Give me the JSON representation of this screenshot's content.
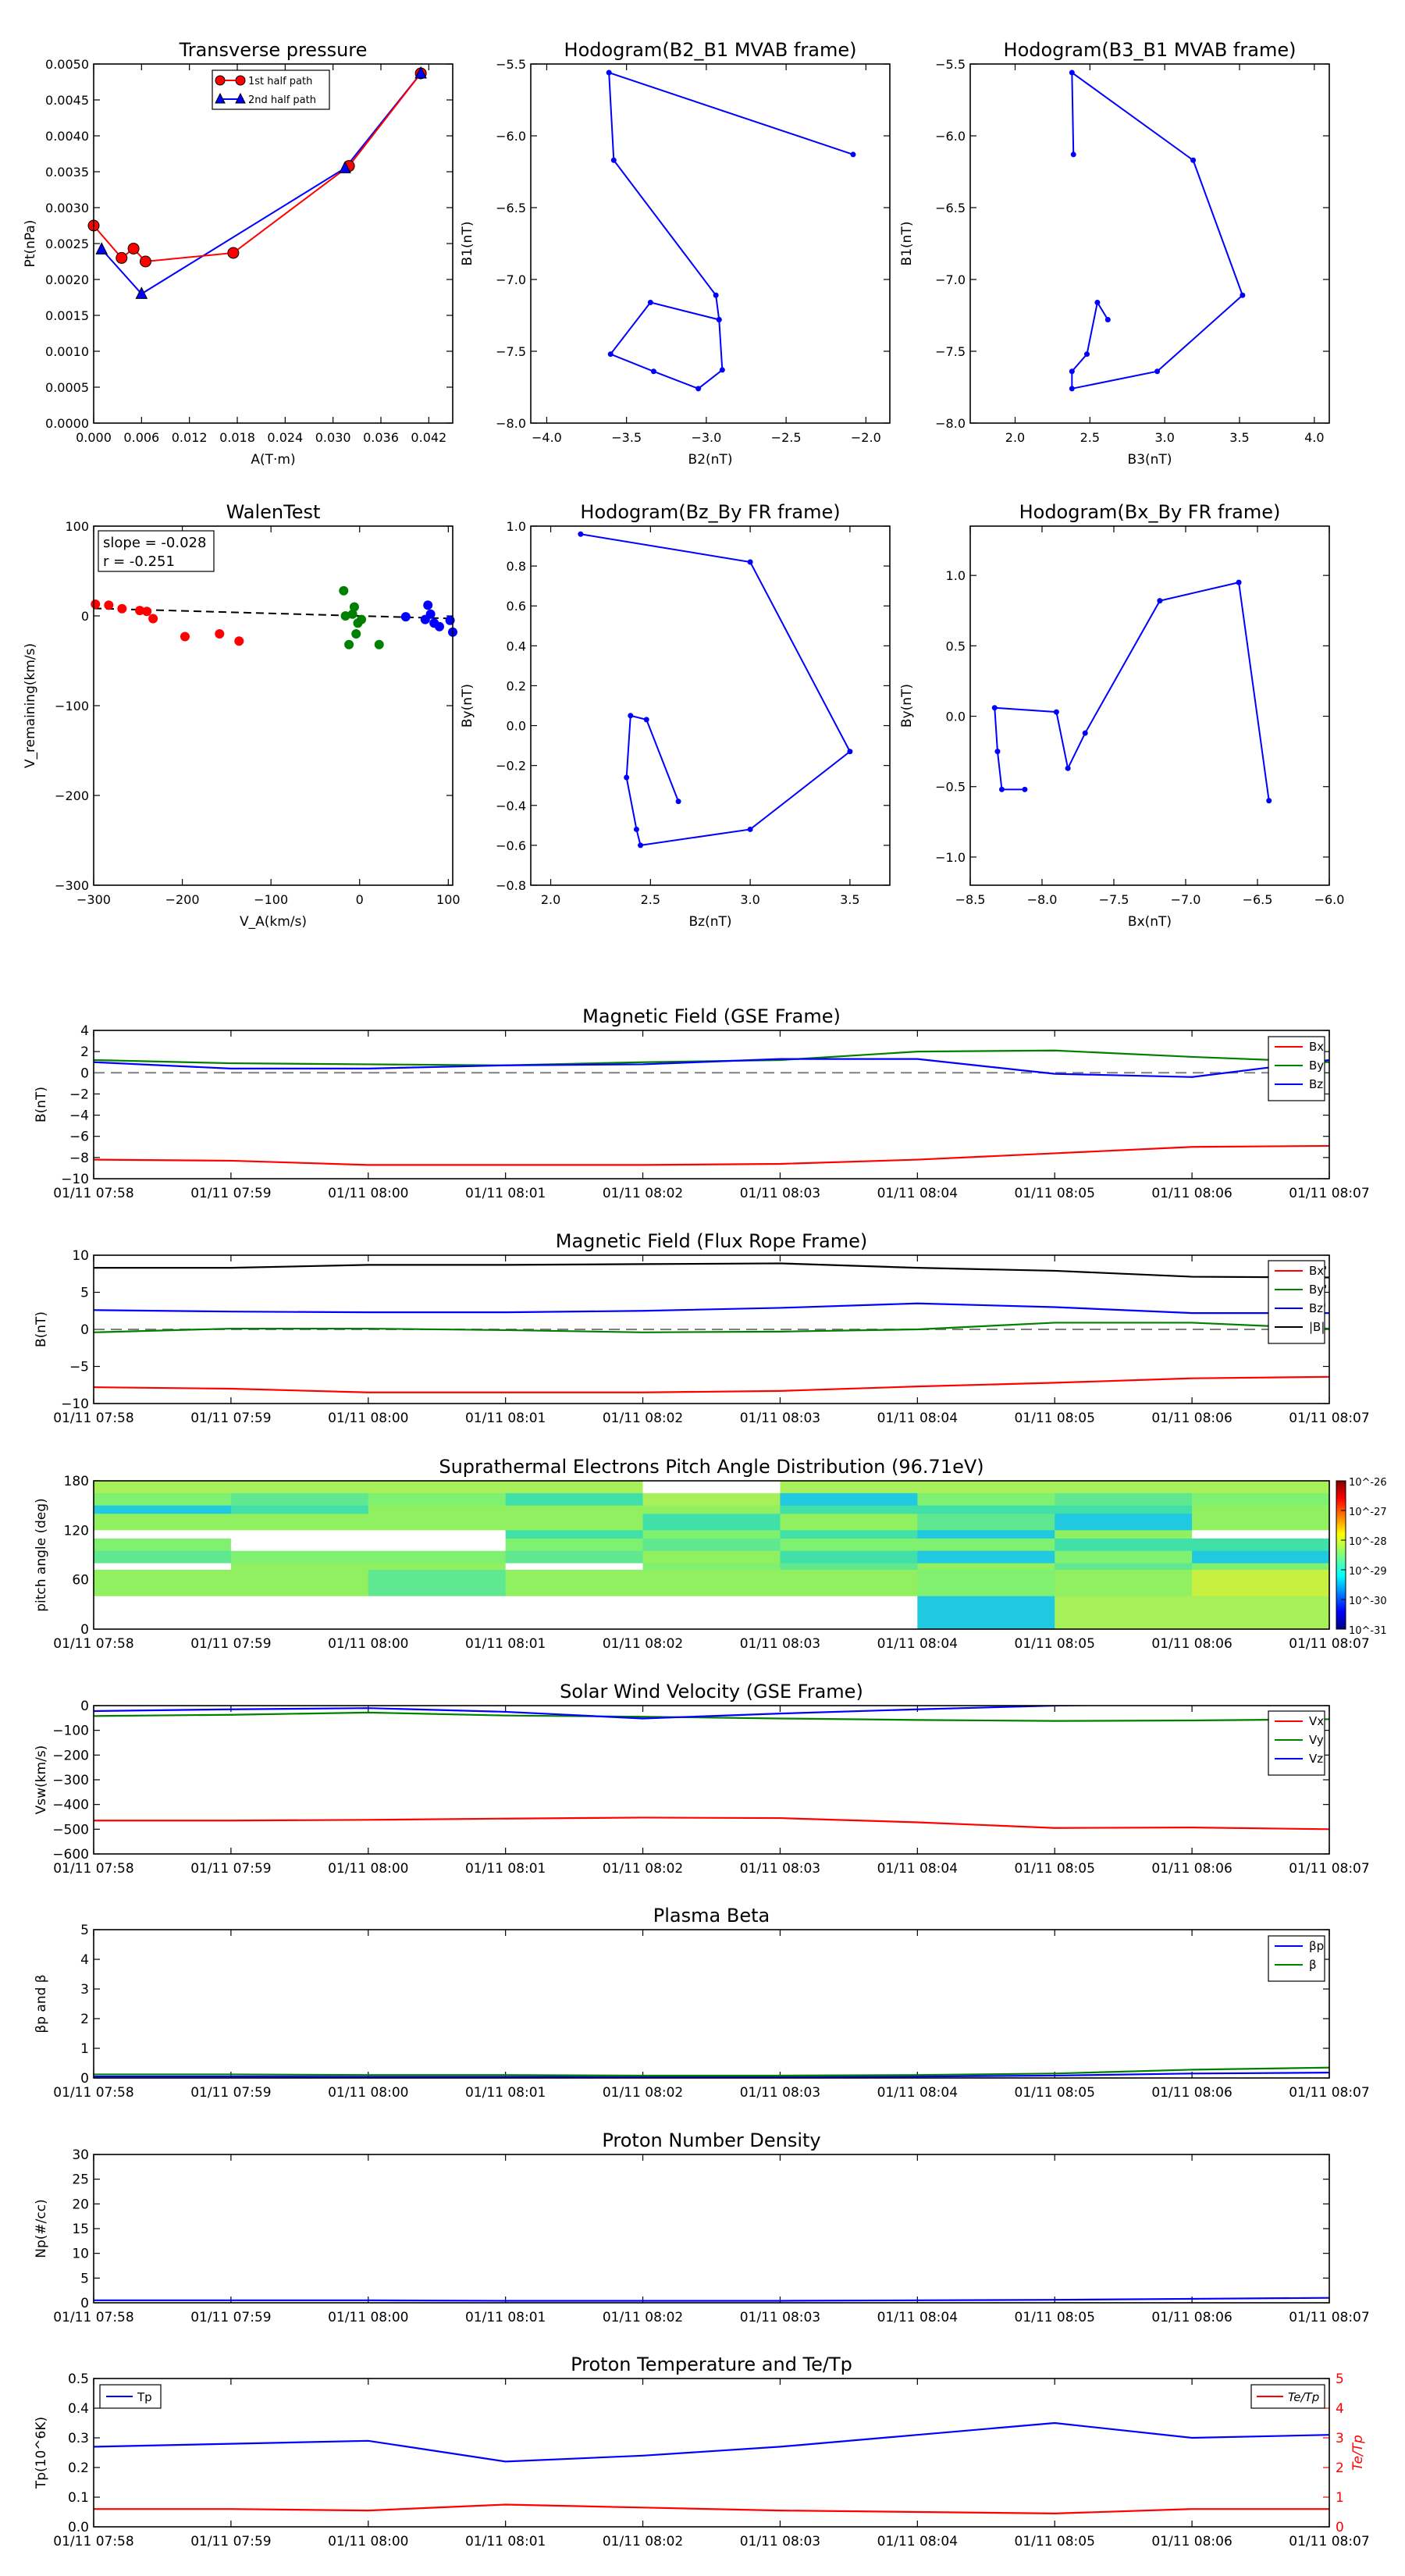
{
  "time_ticks": [
    "01/11 07:58",
    "01/11 07:59",
    "01/11 08:00",
    "01/11 08:01",
    "01/11 08:02",
    "01/11 08:03",
    "01/11 08:04",
    "01/11 08:05",
    "01/11 08:06",
    "01/11 08:07"
  ],
  "colors": {
    "red": "#ff0000",
    "green": "#008000",
    "blue": "#0000ff",
    "black": "#000000",
    "gray": "#808080",
    "dark_red": "#cc0000",
    "dark_green": "#007000",
    "dark_blue": "#1010e0"
  },
  "chart_data": [
    {
      "id": "pt",
      "type": "line",
      "title": "Transverse pressure",
      "xlabel": "A(T·m)",
      "ylabel": "Pt(nPa)",
      "xlim": [
        0,
        0.045
      ],
      "ylim": [
        0,
        0.005
      ],
      "xticks": [
        0.0,
        0.006,
        0.012,
        0.018,
        0.024,
        0.03,
        0.036,
        0.042
      ],
      "xtick_labels": [
        "0.000",
        "0.006",
        "0.012",
        "0.018",
        "0.024",
        "0.030",
        "0.036",
        "0.042"
      ],
      "yticks": [
        0,
        0.0005,
        0.001,
        0.0015,
        0.002,
        0.0025,
        0.003,
        0.0035,
        0.004,
        0.0045,
        0.005
      ],
      "ytick_labels": [
        "0.0000",
        "0.0005",
        "0.0010",
        "0.0015",
        "0.0020",
        "0.0025",
        "0.0030",
        "0.0035",
        "0.0040",
        "0.0045",
        "0.0050"
      ],
      "legend": "top-center",
      "series": [
        {
          "name": "1st half path",
          "marker": "circle",
          "x": [
            0.0,
            0.0035,
            0.005,
            0.0065,
            0.0175,
            0.032,
            0.041
          ],
          "y": [
            0.00275,
            0.0023,
            0.00243,
            0.00225,
            0.00237,
            0.00358,
            0.00487
          ]
        },
        {
          "name": "2nd half path",
          "marker": "triangle",
          "x": [
            0.001,
            0.006,
            0.0315,
            0.041
          ],
          "y": [
            0.00242,
            0.0018,
            0.00355,
            0.00487
          ]
        }
      ]
    },
    {
      "id": "h1",
      "type": "scatter",
      "title": "Hodogram(B2_B1 MVAB frame)",
      "xlabel": "B2(nT)",
      "ylabel": "B1(nT)",
      "xlim": [
        -4.1,
        -1.85
      ],
      "ylim": [
        -8.0,
        -5.5
      ],
      "xticks": [
        -4.0,
        -3.5,
        -3.0,
        -2.5,
        -2.0
      ],
      "xtick_labels": [
        "−4.0",
        "−3.5",
        "−3.0",
        "−2.5",
        "−2.0"
      ],
      "yticks": [
        -8.0,
        -7.5,
        -7.0,
        -6.5,
        -6.0,
        -5.5
      ],
      "ytick_labels": [
        "−8.0",
        "−7.5",
        "−7.0",
        "−6.5",
        "−6.0",
        "−5.5"
      ],
      "x": [
        -2.08,
        -3.61,
        -3.58,
        -2.94,
        -2.92,
        -3.35,
        -3.6,
        -3.33,
        -3.05,
        -2.9,
        -2.92
      ],
      "y": [
        -6.13,
        -5.56,
        -6.17,
        -7.11,
        -7.28,
        -7.16,
        -7.52,
        -7.64,
        -7.76,
        -7.63,
        -7.28
      ]
    },
    {
      "id": "h2",
      "type": "scatter",
      "title": "Hodogram(B3_B1 MVAB frame)",
      "xlabel": "B3(nT)",
      "ylabel": "B1(nT)",
      "xlim": [
        1.7,
        4.1
      ],
      "ylim": [
        -8.0,
        -5.5
      ],
      "xticks": [
        2.0,
        2.5,
        3.0,
        3.5,
        4.0
      ],
      "xtick_labels": [
        "2.0",
        "2.5",
        "3.0",
        "3.5",
        "4.0"
      ],
      "yticks": [
        -8.0,
        -7.5,
        -7.0,
        -6.5,
        -6.0,
        -5.5
      ],
      "ytick_labels": [
        "−8.0",
        "−7.5",
        "−7.0",
        "−6.5",
        "−6.0",
        "−5.5"
      ],
      "x": [
        2.39,
        2.38,
        3.19,
        3.52,
        2.95,
        2.38,
        2.38,
        2.48,
        2.55,
        2.62
      ],
      "y": [
        -6.13,
        -5.56,
        -6.17,
        -7.11,
        -7.64,
        -7.76,
        -7.64,
        -7.52,
        -7.16,
        -7.28
      ]
    },
    {
      "id": "walen",
      "type": "scatter",
      "title": "WalenTest",
      "xlabel": "V_A(km/s)",
      "ylabel": "V_remaining(km/s)",
      "xlim": [
        -300,
        105
      ],
      "ylim": [
        -300,
        100
      ],
      "xticks": [
        -300,
        -200,
        -100,
        0,
        100
      ],
      "xtick_labels": [
        "−300",
        "−200",
        "−100",
        "0",
        "100"
      ],
      "yticks": [
        -300,
        -200,
        -100,
        0,
        100
      ],
      "ytick_labels": [
        "−300",
        "−200",
        "−100",
        "0",
        "100"
      ],
      "annotation": [
        "slope = -0.028",
        "r = -0.251"
      ],
      "fit": {
        "slope": -0.028,
        "intercept": 0
      },
      "series": [
        {
          "color": "red",
          "x": [
            -298,
            -283,
            -268,
            -248,
            -240,
            -233,
            -197,
            -158,
            -136
          ],
          "y": [
            13,
            12,
            8,
            6,
            5,
            -3,
            -23,
            -20,
            -28
          ]
        },
        {
          "color": "green",
          "x": [
            -18,
            -16,
            -12,
            -8,
            -6,
            -4,
            -2,
            2,
            22
          ],
          "y": [
            28,
            0,
            -32,
            2,
            10,
            -20,
            -8,
            -4,
            -32
          ]
        },
        {
          "color": "blue",
          "x": [
            52,
            74,
            77,
            80,
            84,
            90,
            102,
            105
          ],
          "y": [
            -1,
            -4,
            12,
            2,
            -8,
            -12,
            -5,
            -18
          ]
        }
      ]
    },
    {
      "id": "h3",
      "type": "scatter",
      "title": "Hodogram(Bz_By FR frame)",
      "xlabel": "Bz(nT)",
      "ylabel": "By(nT)",
      "xlim": [
        1.9,
        3.7
      ],
      "ylim": [
        -0.8,
        1.0
      ],
      "xticks": [
        2.0,
        2.5,
        3.0,
        3.5
      ],
      "xtick_labels": [
        "2.0",
        "2.5",
        "3.0",
        "3.5"
      ],
      "yticks": [
        -0.8,
        -0.6,
        -0.4,
        -0.2,
        0.0,
        0.2,
        0.4,
        0.6,
        0.8,
        1.0
      ],
      "ytick_labels": [
        "−0.8",
        "−0.6",
        "−0.4",
        "−0.2",
        "0.0",
        "0.2",
        "0.4",
        "0.6",
        "0.8",
        "1.0"
      ],
      "x": [
        2.64,
        2.48,
        2.4,
        2.38,
        2.43,
        2.45,
        3.0,
        3.5,
        3.0,
        2.15
      ],
      "y": [
        -0.38,
        0.03,
        0.05,
        -0.26,
        -0.52,
        -0.6,
        -0.52,
        -0.13,
        0.82,
        0.96
      ]
    },
    {
      "id": "h4",
      "type": "scatter",
      "title": "Hodogram(Bx_By FR frame)",
      "xlabel": "Bx(nT)",
      "ylabel": "By(nT)",
      "xlim": [
        -8.5,
        -6.0
      ],
      "ylim": [
        -1.2,
        1.35
      ],
      "xticks": [
        -8.5,
        -8.0,
        -7.5,
        -7.0,
        -6.5,
        -6.0
      ],
      "xtick_labels": [
        "−8.5",
        "−8.0",
        "−7.5",
        "−7.0",
        "−6.5",
        "−6.0"
      ],
      "yticks": [
        -1.0,
        -0.5,
        0.0,
        0.5,
        1.0
      ],
      "ytick_labels": [
        "−1.0",
        "−0.5",
        "0.0",
        "0.5",
        "1.0"
      ],
      "x": [
        -6.42,
        -6.63,
        -7.18,
        -7.7,
        -7.82,
        -7.9,
        -8.33,
        -8.31,
        -8.28,
        -8.12
      ],
      "y": [
        -0.6,
        0.95,
        0.82,
        -0.12,
        -0.37,
        0.03,
        0.06,
        -0.25,
        -0.52,
        -0.52
      ]
    },
    {
      "id": "bgse",
      "type": "line",
      "title": "Magnetic Field (GSE Frame)",
      "ylabel": "B(nT)",
      "ylim": [
        -10,
        4
      ],
      "yticks": [
        -10,
        -8,
        -6,
        -4,
        -2,
        0,
        2,
        4
      ],
      "ytick_labels": [
        "−10",
        "−8",
        "−6",
        "−4",
        "−2",
        "0",
        "2",
        "4"
      ],
      "legend": "top-right",
      "zero_line": true,
      "series": [
        {
          "name": "Bx",
          "color": "red",
          "y": [
            -8.2,
            -8.3,
            -8.7,
            -8.7,
            -8.7,
            -8.6,
            -8.2,
            -7.6,
            -7.0,
            -6.9
          ]
        },
        {
          "name": "By",
          "color": "green",
          "y": [
            1.2,
            0.9,
            0.8,
            0.7,
            1.0,
            1.2,
            2.0,
            2.1,
            1.5,
            1.0
          ]
        },
        {
          "name": "Bz",
          "color": "blue",
          "y": [
            1.0,
            0.4,
            0.4,
            0.7,
            0.8,
            1.3,
            1.3,
            -0.1,
            -0.4,
            1.2
          ]
        }
      ]
    },
    {
      "id": "bfr",
      "type": "line",
      "title": "Magnetic Field (Flux Rope Frame)",
      "ylabel": "B(nT)",
      "ylim": [
        -10,
        10
      ],
      "yticks": [
        -10,
        -5,
        0,
        5,
        10
      ],
      "ytick_labels": [
        "−10",
        "−5",
        "0",
        "5",
        "10"
      ],
      "legend": "top-right",
      "zero_line": true,
      "series": [
        {
          "name": "Bx'",
          "color": "red",
          "y": [
            -7.8,
            -8.0,
            -8.5,
            -8.5,
            -8.5,
            -8.3,
            -7.7,
            -7.2,
            -6.6,
            -6.4
          ]
        },
        {
          "name": "By'",
          "color": "green",
          "y": [
            -0.4,
            0.1,
            0.1,
            -0.1,
            -0.4,
            -0.3,
            0,
            0.9,
            0.9,
            0.1
          ]
        },
        {
          "name": "Bz'",
          "color": "blue",
          "y": [
            2.6,
            2.4,
            2.3,
            2.3,
            2.5,
            2.9,
            3.5,
            3.0,
            2.2,
            2.2
          ]
        },
        {
          "name": "|B|",
          "color": "black",
          "y": [
            8.3,
            8.3,
            8.7,
            8.7,
            8.8,
            8.9,
            8.3,
            7.9,
            7.1,
            7.0
          ]
        }
      ]
    },
    {
      "id": "pad",
      "type": "heatmap",
      "title": "Suprathermal Electrons Pitch Angle Distribution (96.71eV)",
      "ylabel": "pitch angle (deg)",
      "ylim": [
        0,
        180
      ],
      "yticks": [
        0,
        60,
        120,
        180
      ],
      "ytick_labels": [
        "0",
        "60",
        "120",
        "180"
      ],
      "colorbar_ticks": [
        "10^-26",
        "10^-27",
        "10^-28",
        "10^-29",
        "10^-30",
        "10^-31"
      ]
    },
    {
      "id": "vsw",
      "type": "line",
      "title": "Solar Wind Velocity (GSE Frame)",
      "ylabel": "Vsw(km/s)",
      "ylim": [
        -600,
        0
      ],
      "yticks": [
        -600,
        -500,
        -400,
        -300,
        -200,
        -100,
        0
      ],
      "ytick_labels": [
        "−600",
        "−500",
        "−400",
        "−300",
        "−200",
        "−100",
        "0"
      ],
      "legend": "top-right",
      "series": [
        {
          "name": "Vx",
          "color": "red",
          "y": [
            -465,
            -465,
            -462,
            -457,
            -453,
            -455,
            -472,
            -495,
            -493,
            -500
          ]
        },
        {
          "name": "Vy",
          "color": "green",
          "y": [
            -42,
            -37,
            -28,
            -40,
            -45,
            -52,
            -58,
            -62,
            -60,
            -55
          ]
        },
        {
          "name": "Vz",
          "color": "blue",
          "y": [
            -22,
            -15,
            -10,
            -25,
            -52,
            -32,
            -15,
            0,
            8,
            20
          ]
        }
      ]
    },
    {
      "id": "beta",
      "type": "line",
      "title": "Plasma Beta",
      "ylabel": "βp and β",
      "ylim": [
        0,
        5
      ],
      "yticks": [
        0,
        1,
        2,
        3,
        4,
        5
      ],
      "ytick_labels": [
        "0",
        "1",
        "2",
        "3",
        "4",
        "5"
      ],
      "legend": "top-right",
      "series": [
        {
          "name": "βp",
          "color": "blue",
          "y": [
            0.05,
            0.05,
            0.04,
            0.04,
            0.03,
            0.03,
            0.05,
            0.08,
            0.15,
            0.18
          ]
        },
        {
          "name": "β",
          "color": "green",
          "y": [
            0.12,
            0.12,
            0.1,
            0.1,
            0.08,
            0.08,
            0.1,
            0.15,
            0.28,
            0.35
          ]
        }
      ]
    },
    {
      "id": "np",
      "type": "line",
      "title": "Proton Number Density",
      "ylabel": "Np(#/cc)",
      "ylim": [
        0,
        30
      ],
      "yticks": [
        0,
        5,
        10,
        15,
        20,
        25,
        30
      ],
      "ytick_labels": [
        "0",
        "5",
        "10",
        "15",
        "20",
        "25",
        "30"
      ],
      "series": [
        {
          "color": "blue",
          "y": [
            0.5,
            0.5,
            0.5,
            0.4,
            0.4,
            0.4,
            0.5,
            0.6,
            0.8,
            1.0
          ]
        }
      ]
    },
    {
      "id": "tp",
      "type": "line",
      "title": "Proton Temperature and Te/Tp",
      "ylabel": "Tp(10^6K)",
      "y2label": "Te/Tp",
      "ylim": [
        0,
        0.5
      ],
      "y2lim": [
        0,
        5
      ],
      "yticks": [
        0,
        0.1,
        0.2,
        0.3,
        0.4,
        0.5
      ],
      "ytick_labels": [
        "0.0",
        "0.1",
        "0.2",
        "0.3",
        "0.4",
        "0.5"
      ],
      "y2ticks": [
        0,
        1,
        2,
        3,
        4,
        5
      ],
      "y2tick_labels": [
        "0",
        "1",
        "2",
        "3",
        "4",
        "5"
      ],
      "legend_left": "Tp",
      "legend_right": "Te/Tp",
      "series": [
        {
          "name": "Tp",
          "color": "blue",
          "axis": "left",
          "y": [
            0.27,
            0.28,
            0.29,
            0.22,
            0.24,
            0.27,
            0.31,
            0.35,
            0.3,
            0.31
          ]
        },
        {
          "name": "Te/Tp",
          "color": "red",
          "axis": "right",
          "y": [
            0.6,
            0.6,
            0.55,
            0.75,
            0.65,
            0.55,
            0.5,
            0.45,
            0.6,
            0.6
          ]
        }
      ]
    }
  ]
}
